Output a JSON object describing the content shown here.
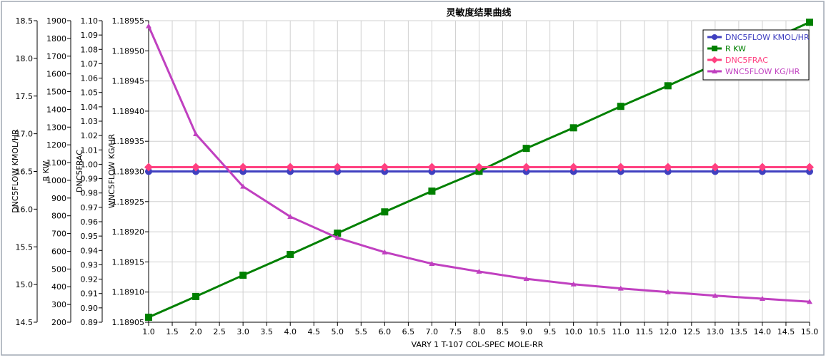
{
  "chart_data": {
    "type": "line",
    "title": "灵敏度结果曲线",
    "xlabel": "VARY   1 T-107 COL-SPEC MOLE-RR",
    "x": [
      1,
      2,
      3,
      4,
      5,
      6,
      7,
      8,
      9,
      10,
      11,
      12,
      13,
      14,
      15
    ],
    "xlim": [
      1.0,
      15.0
    ],
    "x_ticks": [
      "1.0",
      "1.5",
      "2.0",
      "2.5",
      "3.0",
      "3.5",
      "4.0",
      "4.5",
      "5.0",
      "5.5",
      "6.0",
      "6.5",
      "7.0",
      "7.5",
      "8.0",
      "8.5",
      "9.0",
      "9.5",
      "10.0",
      "10.5",
      "11.0",
      "11.5",
      "12.0",
      "12.5",
      "13.0",
      "13.5",
      "14.0",
      "14.5",
      "15.0"
    ],
    "grid": true,
    "legend_position": "top-right",
    "axes": [
      {
        "label": "DNC5FLOW KMOL/HR",
        "ylim": [
          14.5,
          18.5
        ],
        "ticks": [
          "14.5",
          "15.0",
          "15.5",
          "16.0",
          "16.5",
          "17.0",
          "17.5",
          "18.0",
          "18.5"
        ]
      },
      {
        "label": "R KW",
        "ylim": [
          200,
          1900
        ],
        "ticks": [
          "200",
          "300",
          "400",
          "500",
          "600",
          "700",
          "800",
          "900",
          "1000",
          "1100",
          "1200",
          "1300",
          "1400",
          "1500",
          "1600",
          "1700",
          "1800",
          "1900"
        ]
      },
      {
        "label": "DNC5FRAC",
        "ylim": [
          0.89,
          1.1
        ],
        "ticks": [
          "0.89",
          "0.90",
          "0.91",
          "0.92",
          "0.93",
          "0.94",
          "0.95",
          "0.96",
          "0.97",
          "0.98",
          "0.99",
          "1.00",
          "1.01",
          "1.02",
          "1.03",
          "1.04",
          "1.05",
          "1.06",
          "1.07",
          "1.08",
          "1.09",
          "1.10"
        ]
      },
      {
        "label": "WNC5FLOW KG/HR",
        "ylim": [
          1.18905,
          1.18955
        ],
        "ticks": [
          "1.18905",
          "1.18910",
          "1.18915",
          "1.18920",
          "1.18925",
          "1.18930",
          "1.18935",
          "1.18940",
          "1.18945",
          "1.18950",
          "1.18955"
        ]
      }
    ],
    "series": [
      {
        "name": "DNC5FLOW KMOL/HR",
        "axis": 0,
        "color": "#4040c0",
        "marker": "circle",
        "values": [
          16.5,
          16.5,
          16.5,
          16.5,
          16.5,
          16.5,
          16.5,
          16.5,
          16.5,
          16.5,
          16.5,
          16.5,
          16.5,
          16.5,
          16.5
        ]
      },
      {
        "name": "R KW",
        "axis": 1,
        "color": "#008000",
        "marker": "square",
        "values": [
          228,
          345,
          465,
          582,
          702,
          822,
          939,
          1051,
          1180,
          1296,
          1417,
          1533,
          1654,
          1770,
          1891
        ]
      },
      {
        "name": "DNC5FRAC",
        "axis": 2,
        "color": "#ff4080",
        "marker": "diamond",
        "values": [
          0.998,
          0.998,
          0.998,
          0.998,
          0.998,
          0.998,
          0.998,
          0.998,
          0.998,
          0.998,
          0.998,
          0.998,
          0.998,
          0.998,
          0.998
        ]
      },
      {
        "name": "WNC5FLOW KG/HR",
        "axis": 3,
        "color": "#c040c0",
        "marker": "triangle",
        "values": [
          1.189541,
          1.189362,
          1.189275,
          1.189225,
          1.18919,
          1.189166,
          1.189147,
          1.189134,
          1.189122,
          1.189113,
          1.189106,
          1.1891,
          1.189094,
          1.189089,
          1.189084
        ]
      }
    ]
  }
}
